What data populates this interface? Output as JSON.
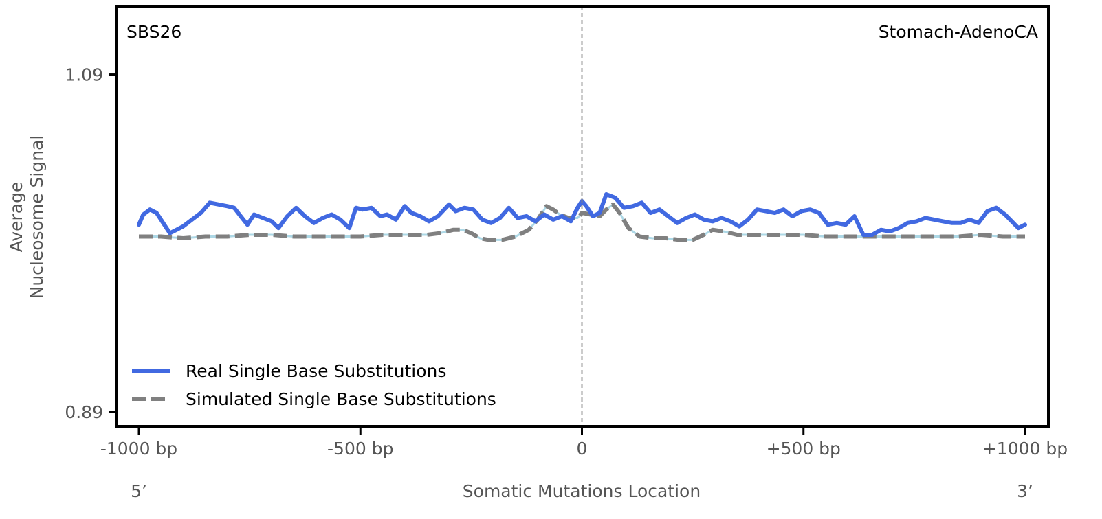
{
  "chart_data": {
    "type": "line",
    "signature_label": "SBS26",
    "cancer_type_label": "Stomach-AdenoCA",
    "xlabel": "Somatic Mutations Location",
    "ylabel_lines": [
      "Average",
      "Nucleosome Signal"
    ],
    "xlim": [
      -1000,
      1000
    ],
    "ylim": [
      0.8815,
      1.1305
    ],
    "x_ticks": [
      {
        "value": -1000,
        "label": "-1000 bp"
      },
      {
        "value": -500,
        "label": "-500 bp"
      },
      {
        "value": 0,
        "label": "0"
      },
      {
        "value": 500,
        "label": "+500 bp"
      },
      {
        "value": 1000,
        "label": "+1000 bp"
      }
    ],
    "y_ticks": [
      {
        "value": 0.89,
        "label": "0.89"
      },
      {
        "value": 1.09,
        "label": "1.09"
      }
    ],
    "end_labels": {
      "five_prime": "5’",
      "three_prime": "3’"
    },
    "center_line": {
      "x": 0,
      "style": "dashed",
      "color": "#808080"
    },
    "legend": {
      "position": "lower-left",
      "entries": [
        {
          "label": "Real Single Base Substitutions",
          "style": "solid",
          "color": "#4169E1"
        },
        {
          "label": "Simulated Single Base Substitutions",
          "style": "dashed",
          "color": "#808080"
        }
      ]
    },
    "series": [
      {
        "name": "Real Single Base Substitutions",
        "color": "#4169E1",
        "style": "solid",
        "points": [
          [
            -1000,
            1.001
          ],
          [
            -990,
            1.007
          ],
          [
            -975,
            1.01
          ],
          [
            -960,
            1.008
          ],
          [
            -945,
            1.002
          ],
          [
            -930,
            0.996
          ],
          [
            -915,
            0.998
          ],
          [
            -900,
            1.0
          ],
          [
            -880,
            1.004
          ],
          [
            -860,
            1.008
          ],
          [
            -840,
            1.014
          ],
          [
            -820,
            1.013
          ],
          [
            -800,
            1.012
          ],
          [
            -785,
            1.011
          ],
          [
            -770,
            1.006
          ],
          [
            -755,
            1.001
          ],
          [
            -740,
            1.007
          ],
          [
            -720,
            1.005
          ],
          [
            -700,
            1.003
          ],
          [
            -685,
            0.999
          ],
          [
            -665,
            1.006
          ],
          [
            -645,
            1.011
          ],
          [
            -625,
            1.006
          ],
          [
            -605,
            1.002
          ],
          [
            -585,
            1.005
          ],
          [
            -565,
            1.007
          ],
          [
            -545,
            1.004
          ],
          [
            -525,
            0.999
          ],
          [
            -510,
            1.011
          ],
          [
            -495,
            1.01
          ],
          [
            -475,
            1.011
          ],
          [
            -455,
            1.006
          ],
          [
            -440,
            1.007
          ],
          [
            -420,
            1.004
          ],
          [
            -400,
            1.012
          ],
          [
            -385,
            1.008
          ],
          [
            -365,
            1.006
          ],
          [
            -345,
            1.003
          ],
          [
            -325,
            1.006
          ],
          [
            -300,
            1.013
          ],
          [
            -285,
            1.009
          ],
          [
            -265,
            1.011
          ],
          [
            -245,
            1.01
          ],
          [
            -225,
            1.004
          ],
          [
            -205,
            1.002
          ],
          [
            -185,
            1.005
          ],
          [
            -165,
            1.011
          ],
          [
            -145,
            1.005
          ],
          [
            -125,
            1.006
          ],
          [
            -105,
            1.003
          ],
          [
            -85,
            1.007
          ],
          [
            -65,
            1.004
          ],
          [
            -45,
            1.006
          ],
          [
            -25,
            1.003
          ],
          [
            -10,
            1.011
          ],
          [
            0,
            1.015
          ],
          [
            10,
            1.012
          ],
          [
            25,
            1.006
          ],
          [
            40,
            1.008
          ],
          [
            55,
            1.019
          ],
          [
            75,
            1.017
          ],
          [
            95,
            1.011
          ],
          [
            115,
            1.012
          ],
          [
            135,
            1.014
          ],
          [
            155,
            1.008
          ],
          [
            175,
            1.01
          ],
          [
            195,
            1.006
          ],
          [
            215,
            1.002
          ],
          [
            235,
            1.005
          ],
          [
            255,
            1.007
          ],
          [
            275,
            1.004
          ],
          [
            295,
            1.003
          ],
          [
            315,
            1.005
          ],
          [
            335,
            1.003
          ],
          [
            355,
            1.0
          ],
          [
            375,
            1.004
          ],
          [
            395,
            1.01
          ],
          [
            415,
            1.009
          ],
          [
            435,
            1.008
          ],
          [
            455,
            1.01
          ],
          [
            475,
            1.006
          ],
          [
            495,
            1.009
          ],
          [
            515,
            1.01
          ],
          [
            535,
            1.008
          ],
          [
            555,
            1.001
          ],
          [
            575,
            1.002
          ],
          [
            595,
            1.001
          ],
          [
            615,
            1.006
          ],
          [
            635,
            0.995
          ],
          [
            655,
            0.995
          ],
          [
            675,
            0.998
          ],
          [
            695,
            0.997
          ],
          [
            715,
            0.999
          ],
          [
            735,
            1.002
          ],
          [
            755,
            1.003
          ],
          [
            775,
            1.005
          ],
          [
            795,
            1.004
          ],
          [
            815,
            1.003
          ],
          [
            835,
            1.002
          ],
          [
            855,
            1.002
          ],
          [
            875,
            1.004
          ],
          [
            895,
            1.002
          ],
          [
            915,
            1.009
          ],
          [
            935,
            1.011
          ],
          [
            955,
            1.007
          ],
          [
            970,
            1.003
          ],
          [
            985,
            0.999
          ],
          [
            1000,
            1.001
          ]
        ]
      },
      {
        "name": "Simulated Single Base Substitutions",
        "color": "#808080",
        "style": "dashed",
        "points": [
          [
            -1000,
            0.994
          ],
          [
            -950,
            0.994
          ],
          [
            -900,
            0.993
          ],
          [
            -850,
            0.994
          ],
          [
            -800,
            0.994
          ],
          [
            -750,
            0.995
          ],
          [
            -700,
            0.995
          ],
          [
            -650,
            0.994
          ],
          [
            -600,
            0.994
          ],
          [
            -550,
            0.994
          ],
          [
            -500,
            0.994
          ],
          [
            -450,
            0.995
          ],
          [
            -400,
            0.995
          ],
          [
            -350,
            0.995
          ],
          [
            -320,
            0.996
          ],
          [
            -290,
            0.998
          ],
          [
            -270,
            0.998
          ],
          [
            -250,
            0.996
          ],
          [
            -230,
            0.993
          ],
          [
            -210,
            0.992
          ],
          [
            -180,
            0.992
          ],
          [
            -150,
            0.994
          ],
          [
            -120,
            0.998
          ],
          [
            -100,
            1.004
          ],
          [
            -80,
            1.012
          ],
          [
            -65,
            1.01
          ],
          [
            -50,
            1.007
          ],
          [
            -30,
            1.005
          ],
          [
            -10,
            1.005
          ],
          [
            0,
            1.008
          ],
          [
            20,
            1.007
          ],
          [
            40,
            1.006
          ],
          [
            55,
            1.01
          ],
          [
            70,
            1.013
          ],
          [
            85,
            1.008
          ],
          [
            105,
            0.999
          ],
          [
            130,
            0.994
          ],
          [
            160,
            0.993
          ],
          [
            190,
            0.993
          ],
          [
            220,
            0.992
          ],
          [
            250,
            0.992
          ],
          [
            275,
            0.995
          ],
          [
            295,
            0.998
          ],
          [
            320,
            0.997
          ],
          [
            350,
            0.995
          ],
          [
            400,
            0.995
          ],
          [
            450,
            0.995
          ],
          [
            500,
            0.995
          ],
          [
            550,
            0.994
          ],
          [
            600,
            0.994
          ],
          [
            650,
            0.994
          ],
          [
            700,
            0.994
          ],
          [
            750,
            0.994
          ],
          [
            800,
            0.994
          ],
          [
            850,
            0.994
          ],
          [
            900,
            0.995
          ],
          [
            950,
            0.994
          ],
          [
            1000,
            0.994
          ]
        ]
      }
    ]
  }
}
